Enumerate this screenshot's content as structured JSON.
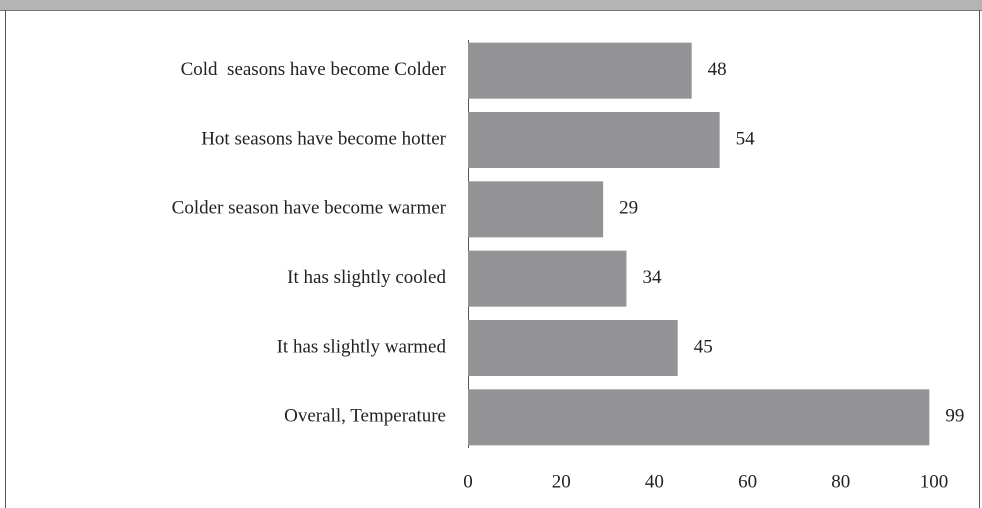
{
  "chart_data": {
    "type": "bar",
    "orientation": "horizontal",
    "categories": [
      "Cold  seasons have become Colder",
      "Hot seasons have become hotter",
      "Colder season have become warmer",
      "It has slightly cooled",
      "It has slightly warmed",
      "Overall, Temperature"
    ],
    "values": [
      48,
      54,
      29,
      34,
      45,
      99
    ],
    "color": "#939395",
    "xlim": [
      0,
      100
    ],
    "xticks": [
      0,
      20,
      40,
      60,
      80,
      100
    ],
    "grid": false
  }
}
